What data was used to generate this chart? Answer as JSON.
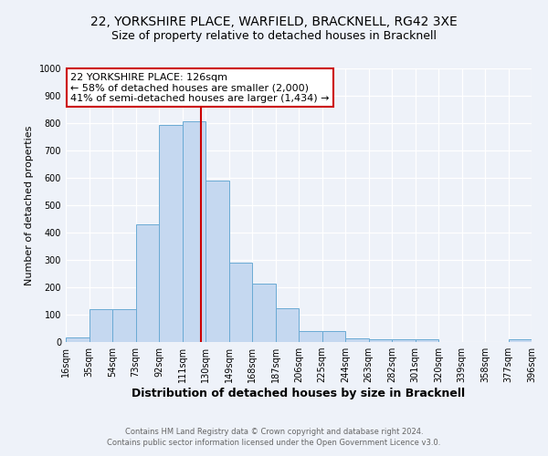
{
  "title1": "22, YORKSHIRE PLACE, WARFIELD, BRACKNELL, RG42 3XE",
  "title2": "Size of property relative to detached houses in Bracknell",
  "xlabel": "Distribution of detached houses by size in Bracknell",
  "ylabel": "Number of detached properties",
  "bin_edges": [
    16,
    35,
    54,
    73,
    92,
    111,
    130,
    149,
    168,
    187,
    206,
    225,
    244,
    263,
    282,
    301,
    320,
    339,
    358,
    377,
    396
  ],
  "bar_heights": [
    18,
    120,
    120,
    430,
    795,
    808,
    590,
    290,
    212,
    125,
    40,
    40,
    12,
    10,
    10,
    10,
    0,
    0,
    0,
    10
  ],
  "bar_color": "#c5d8f0",
  "bar_edge_color": "#6aaad4",
  "vline_x": 126,
  "vline_color": "#cc0000",
  "annotation_box_color": "#cc0000",
  "annotation_lines": [
    "22 YORKSHIRE PLACE: 126sqm",
    "← 58% of detached houses are smaller (2,000)",
    "41% of semi-detached houses are larger (1,434) →"
  ],
  "ylim": [
    0,
    1000
  ],
  "yticks": [
    0,
    100,
    200,
    300,
    400,
    500,
    600,
    700,
    800,
    900,
    1000
  ],
  "tick_labels": [
    "16sqm",
    "35sqm",
    "54sqm",
    "73sqm",
    "92sqm",
    "111sqm",
    "130sqm",
    "149sqm",
    "168sqm",
    "187sqm",
    "206sqm",
    "225sqm",
    "244sqm",
    "263sqm",
    "282sqm",
    "301sqm",
    "320sqm",
    "339sqm",
    "358sqm",
    "377sqm",
    "396sqm"
  ],
  "footer1": "Contains HM Land Registry data © Crown copyright and database right 2024.",
  "footer2": "Contains public sector information licensed under the Open Government Licence v3.0.",
  "background_color": "#eef2f9",
  "plot_bg_color": "#eef2f9",
  "grid_color": "#ffffff",
  "title_fontsize": 10,
  "subtitle_fontsize": 9,
  "ylabel_fontsize": 8,
  "xlabel_fontsize": 9,
  "tick_fontsize": 7,
  "footer_fontsize": 6,
  "annot_fontsize": 8
}
